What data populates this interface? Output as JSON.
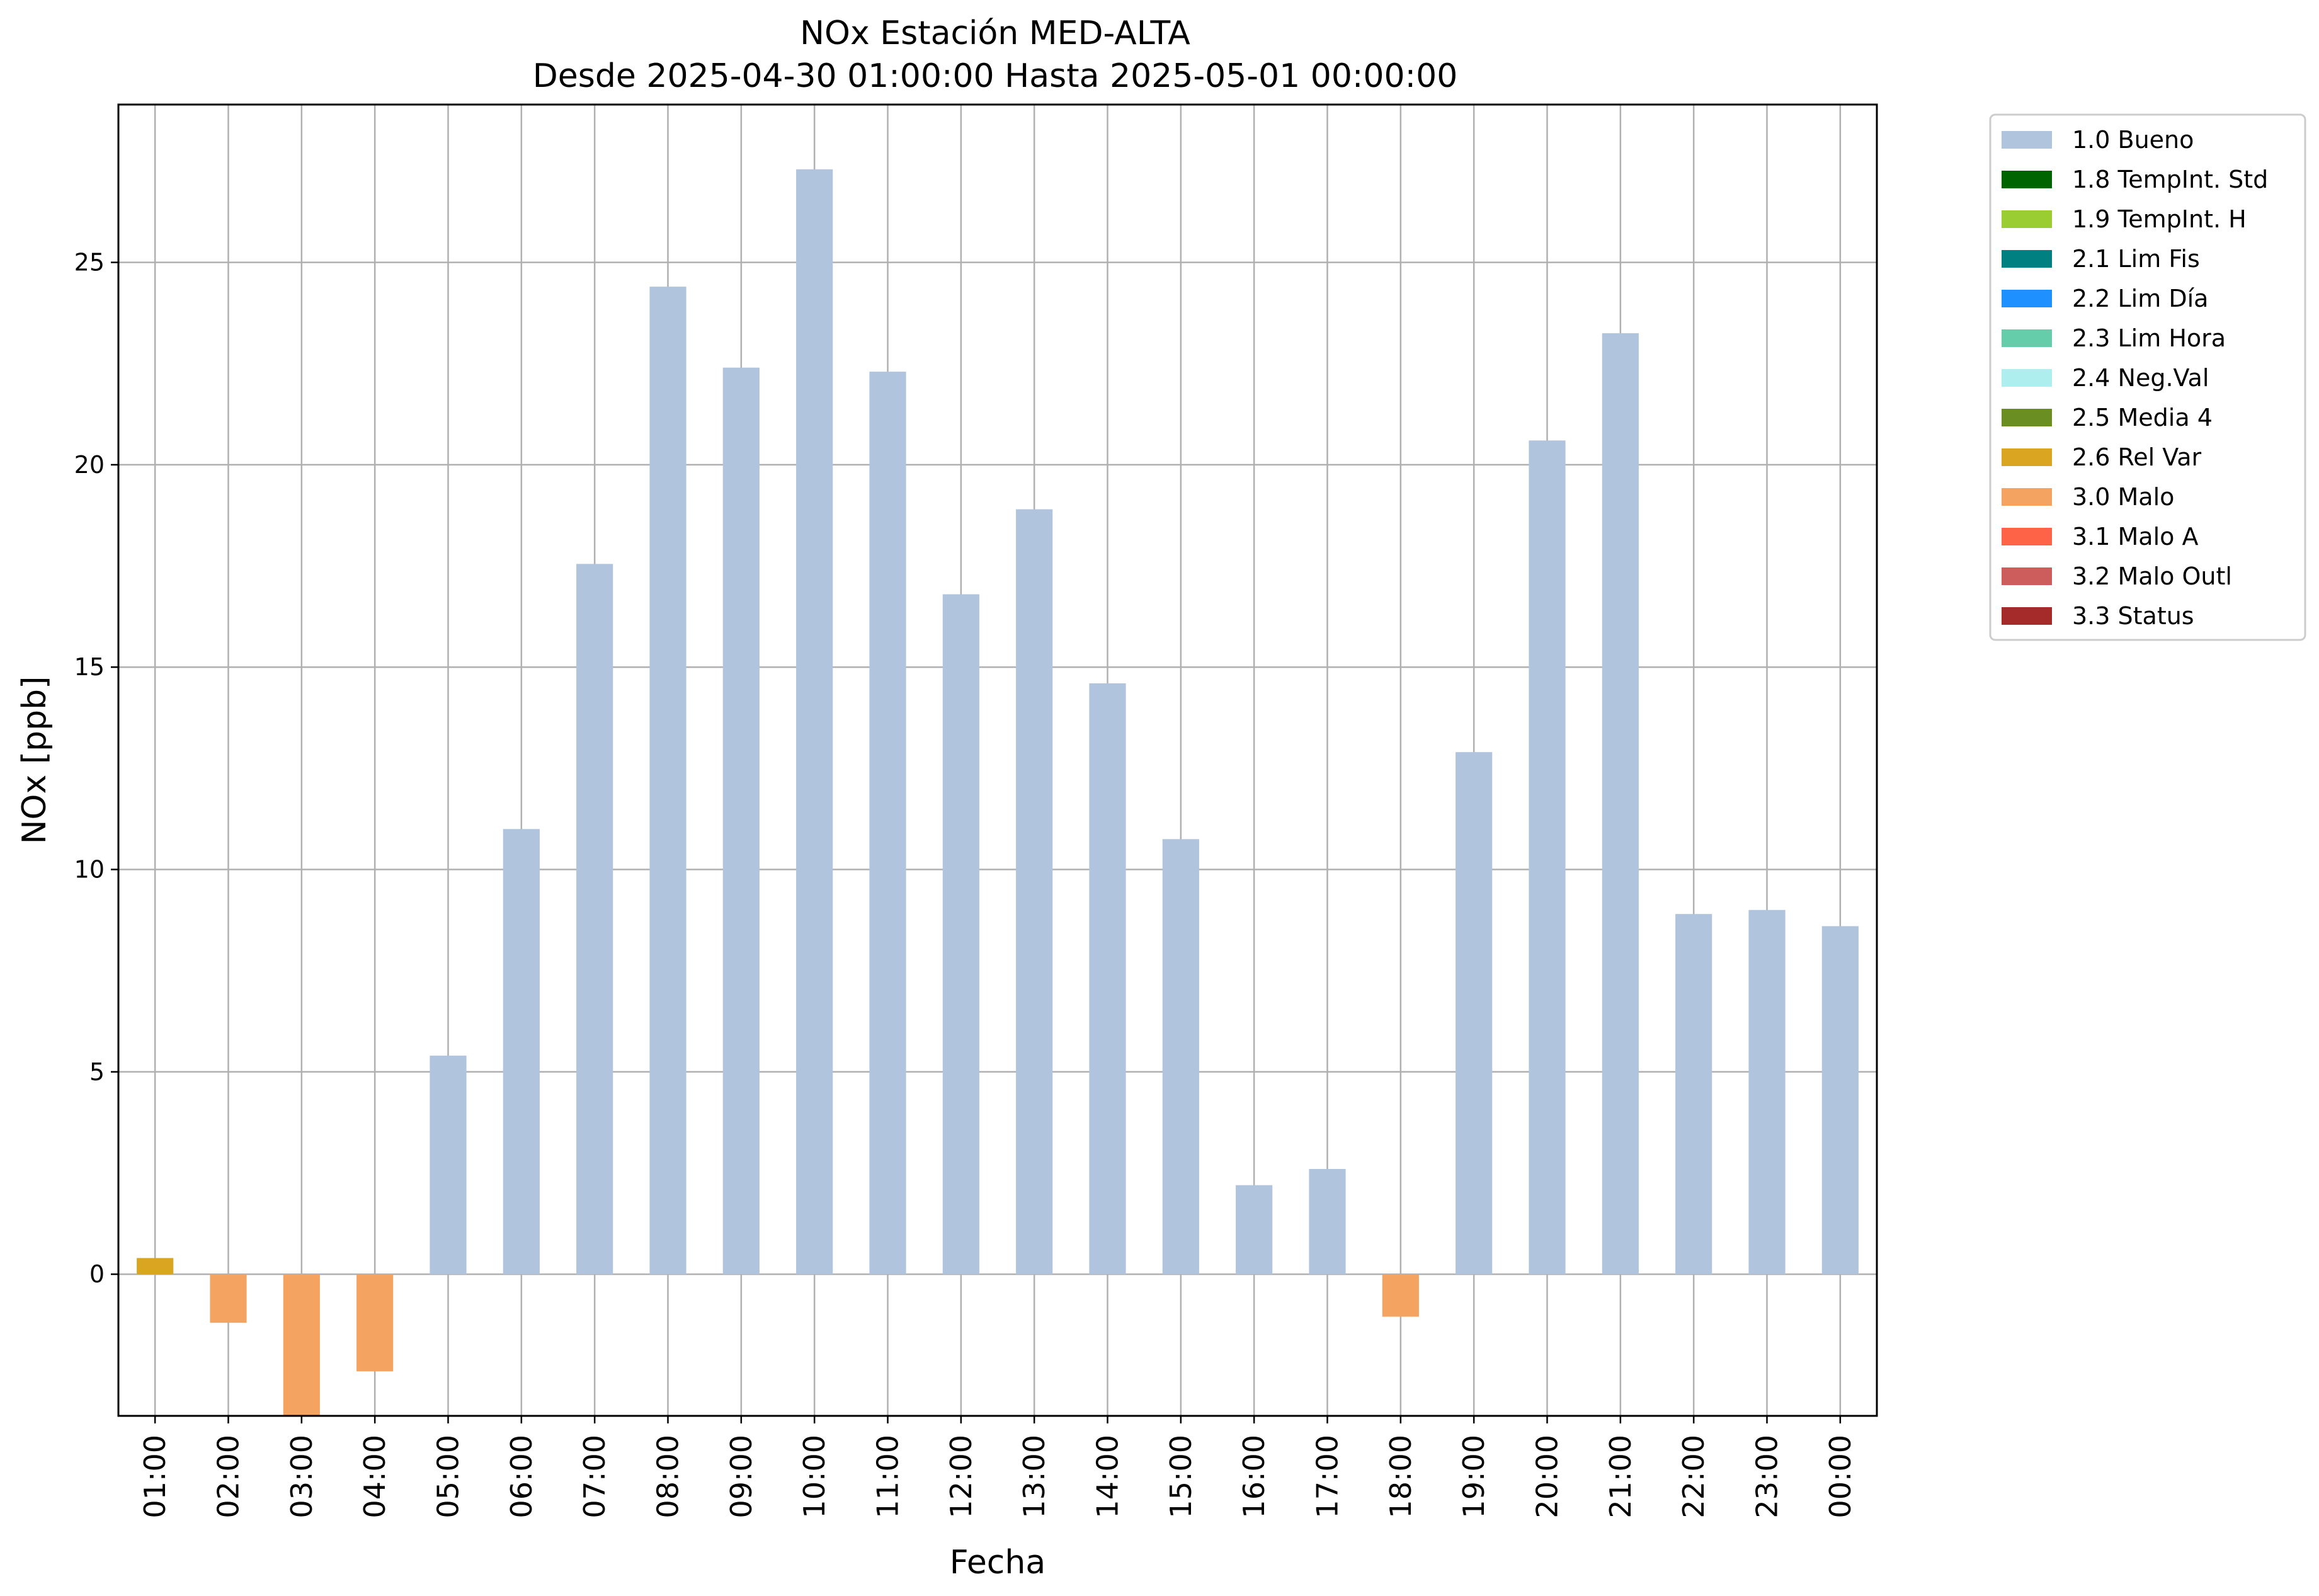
{
  "chart_data": {
    "type": "bar",
    "title": "NOx Estación MED-ALTA",
    "subtitle": "Desde 2025-04-30 01:00:00 Hasta 2025-05-01 00:00:00",
    "xlabel": "Fecha",
    "ylabel": "NOx [ppb]",
    "ylim": [
      -3.5,
      28.9
    ],
    "yticks": [
      0,
      5,
      10,
      15,
      20,
      25
    ],
    "grid": true,
    "legend_position": "outside-right-top",
    "categories": [
      "01:00",
      "02:00",
      "03:00",
      "04:00",
      "05:00",
      "06:00",
      "07:00",
      "08:00",
      "09:00",
      "10:00",
      "11:00",
      "12:00",
      "13:00",
      "14:00",
      "15:00",
      "16:00",
      "17:00",
      "18:00",
      "19:00",
      "20:00",
      "21:00",
      "22:00",
      "23:00",
      "00:00"
    ],
    "values": [
      0.4,
      -1.2,
      -3.5,
      -2.4,
      5.4,
      11.0,
      17.55,
      24.4,
      22.4,
      27.3,
      22.3,
      16.8,
      18.9,
      14.6,
      10.75,
      2.2,
      2.6,
      -1.05,
      12.9,
      20.6,
      23.25,
      8.9,
      9.0,
      8.6
    ],
    "flags": [
      "2.6 Rel Var",
      "3.0 Malo",
      "3.0 Malo",
      "3.0 Malo",
      "1.0 Bueno",
      "1.0 Bueno",
      "1.0 Bueno",
      "1.0 Bueno",
      "1.0 Bueno",
      "1.0 Bueno",
      "1.0 Bueno",
      "1.0 Bueno",
      "1.0 Bueno",
      "1.0 Bueno",
      "1.0 Bueno",
      "1.0 Bueno",
      "1.0 Bueno",
      "3.0 Malo",
      "1.0 Bueno",
      "1.0 Bueno",
      "1.0 Bueno",
      "1.0 Bueno",
      "1.0 Bueno",
      "1.0 Bueno"
    ],
    "legend": [
      {
        "label": "1.0 Bueno",
        "color": "#b0c4de"
      },
      {
        "label": "1.8 TempInt. Std",
        "color": "#006400"
      },
      {
        "label": "1.9 TempInt. H",
        "color": "#9acd32"
      },
      {
        "label": "2.1 Lim Fis",
        "color": "#008080"
      },
      {
        "label": "2.2 Lim Día",
        "color": "#1e90ff"
      },
      {
        "label": "2.3 Lim Hora",
        "color": "#66cdaa"
      },
      {
        "label": "2.4 Neg.Val",
        "color": "#afeeee"
      },
      {
        "label": "2.5 Media 4",
        "color": "#6b8e23"
      },
      {
        "label": "2.6 Rel Var",
        "color": "#daa520"
      },
      {
        "label": "3.0 Malo",
        "color": "#f4a460"
      },
      {
        "label": "3.1 Malo A",
        "color": "#ff6347"
      },
      {
        "label": "3.2 Malo Outl",
        "color": "#cd5c5c"
      },
      {
        "label": "3.3 Status",
        "color": "#a52a2a"
      }
    ]
  }
}
